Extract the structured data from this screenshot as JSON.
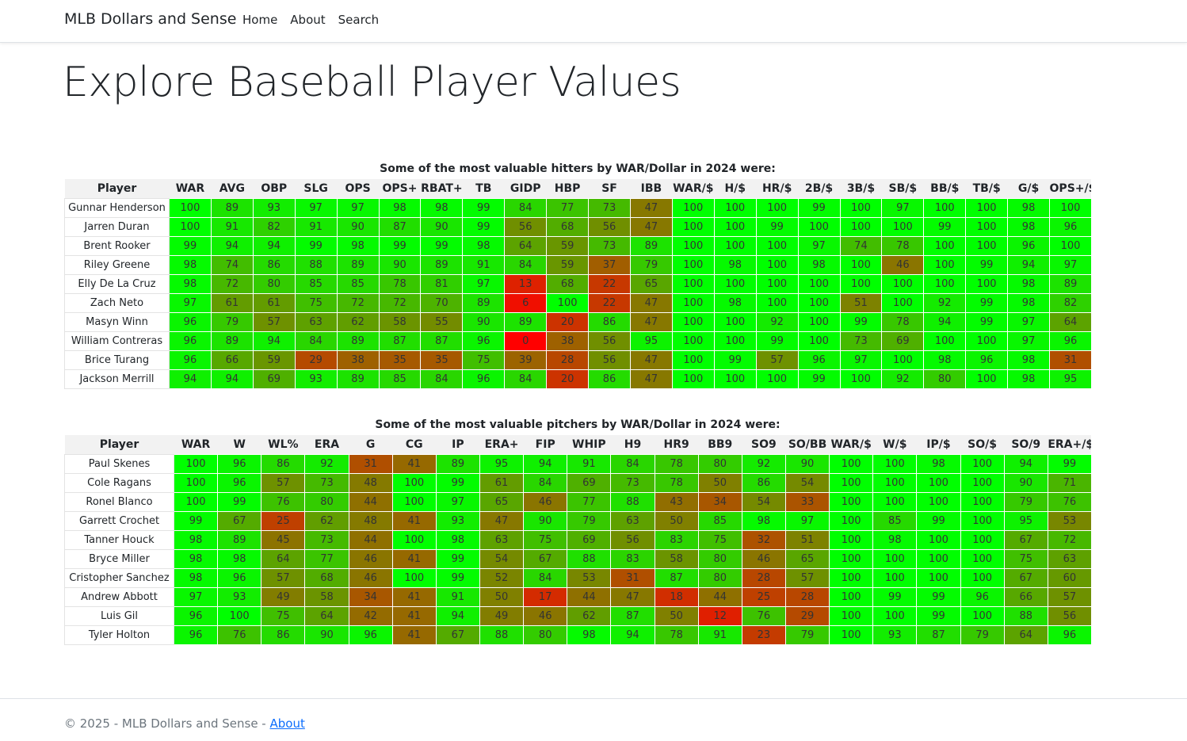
{
  "navbar": {
    "brand": "MLB Dollars and Sense",
    "links": [
      "Home",
      "About",
      "Search"
    ]
  },
  "page_title": "Explore Baseball Player Values",
  "hitters": {
    "caption": "Some of the most valuable hitters by WAR/Dollar in 2024 were:",
    "columns": [
      "Player",
      "WAR",
      "AVG",
      "OBP",
      "SLG",
      "OPS",
      "OPS+",
      "RBAT+",
      "TB",
      "GIDP",
      "HBP",
      "SF",
      "IBB",
      "WAR/$",
      "H/$",
      "HR/$",
      "2B/$",
      "3B/$",
      "SB/$",
      "BB/$",
      "TB/$",
      "G/$",
      "OPS+/$"
    ],
    "rows": [
      {
        "player": "Gunnar Henderson",
        "values": [
          100,
          89,
          93,
          97,
          97,
          98,
          98,
          99,
          84,
          77,
          73,
          47,
          100,
          100,
          100,
          99,
          100,
          97,
          100,
          100,
          98,
          100
        ]
      },
      {
        "player": "Jarren Duran",
        "values": [
          100,
          91,
          82,
          91,
          90,
          87,
          90,
          99,
          56,
          68,
          56,
          47,
          100,
          100,
          99,
          100,
          100,
          100,
          99,
          100,
          98,
          96
        ]
      },
      {
        "player": "Brent Rooker",
        "values": [
          99,
          94,
          94,
          99,
          98,
          99,
          99,
          98,
          64,
          59,
          73,
          89,
          100,
          100,
          100,
          97,
          74,
          78,
          100,
          100,
          96,
          100
        ]
      },
      {
        "player": "Riley Greene",
        "values": [
          98,
          74,
          86,
          88,
          89,
          90,
          89,
          91,
          84,
          59,
          37,
          79,
          100,
          98,
          100,
          98,
          100,
          46,
          100,
          99,
          94,
          97
        ]
      },
      {
        "player": "Elly De La Cruz",
        "values": [
          98,
          72,
          80,
          85,
          85,
          78,
          81,
          97,
          13,
          68,
          22,
          65,
          100,
          100,
          100,
          100,
          100,
          100,
          100,
          100,
          98,
          89
        ]
      },
      {
        "player": "Zach Neto",
        "values": [
          97,
          61,
          61,
          75,
          72,
          72,
          70,
          89,
          6,
          100,
          22,
          47,
          100,
          98,
          100,
          100,
          51,
          100,
          92,
          99,
          98,
          82
        ]
      },
      {
        "player": "Masyn Winn",
        "values": [
          96,
          79,
          57,
          63,
          62,
          58,
          55,
          90,
          89,
          20,
          86,
          47,
          100,
          100,
          92,
          100,
          99,
          78,
          94,
          99,
          97,
          64
        ]
      },
      {
        "player": "William Contreras",
        "values": [
          96,
          89,
          94,
          84,
          89,
          87,
          87,
          96,
          0,
          38,
          56,
          95,
          100,
          100,
          99,
          100,
          73,
          69,
          100,
          100,
          97,
          96
        ]
      },
      {
        "player": "Brice Turang",
        "values": [
          96,
          66,
          59,
          29,
          38,
          35,
          35,
          75,
          39,
          28,
          56,
          47,
          100,
          99,
          57,
          96,
          97,
          100,
          98,
          96,
          98,
          31
        ]
      },
      {
        "player": "Jackson Merrill",
        "values": [
          94,
          94,
          69,
          93,
          89,
          85,
          84,
          96,
          84,
          20,
          86,
          47,
          100,
          100,
          100,
          99,
          100,
          92,
          80,
          100,
          98,
          95
        ]
      }
    ]
  },
  "pitchers": {
    "caption": "Some of the most valuable pitchers by WAR/Dollar in 2024 were:",
    "columns": [
      "Player",
      "WAR",
      "W",
      "WL%",
      "ERA",
      "G",
      "CG",
      "IP",
      "ERA+",
      "FIP",
      "WHIP",
      "H9",
      "HR9",
      "BB9",
      "SO9",
      "SO/BB",
      "WAR/$",
      "W/$",
      "IP/$",
      "SO/$",
      "SO/9",
      "ERA+/$"
    ],
    "rows": [
      {
        "player": "Paul Skenes",
        "values": [
          100,
          96,
          86,
          92,
          31,
          41,
          89,
          95,
          94,
          91,
          84,
          78,
          80,
          92,
          90,
          100,
          100,
          98,
          100,
          94,
          99
        ]
      },
      {
        "player": "Cole Ragans",
        "values": [
          100,
          96,
          57,
          73,
          48,
          100,
          99,
          61,
          84,
          69,
          73,
          78,
          50,
          86,
          54,
          100,
          100,
          100,
          100,
          90,
          71
        ]
      },
      {
        "player": "Ronel Blanco",
        "values": [
          100,
          99,
          76,
          80,
          44,
          100,
          97,
          65,
          46,
          77,
          88,
          43,
          34,
          54,
          33,
          100,
          100,
          100,
          100,
          79,
          76
        ]
      },
      {
        "player": "Garrett Crochet",
        "values": [
          99,
          67,
          25,
          62,
          48,
          41,
          93,
          47,
          90,
          79,
          63,
          50,
          85,
          98,
          97,
          100,
          85,
          99,
          100,
          95,
          53
        ]
      },
      {
        "player": "Tanner Houck",
        "values": [
          98,
          89,
          45,
          73,
          44,
          100,
          98,
          63,
          75,
          69,
          56,
          83,
          75,
          32,
          51,
          100,
          98,
          100,
          100,
          67,
          72
        ]
      },
      {
        "player": "Bryce Miller",
        "values": [
          98,
          98,
          64,
          77,
          46,
          41,
          99,
          54,
          67,
          88,
          83,
          58,
          80,
          46,
          65,
          100,
          100,
          100,
          100,
          75,
          63
        ]
      },
      {
        "player": "Cristopher Sanchez",
        "values": [
          98,
          96,
          57,
          68,
          46,
          100,
          99,
          52,
          84,
          53,
          31,
          87,
          80,
          28,
          57,
          100,
          100,
          100,
          100,
          67,
          60
        ]
      },
      {
        "player": "Andrew Abbott",
        "values": [
          97,
          93,
          49,
          58,
          34,
          41,
          91,
          50,
          17,
          44,
          47,
          18,
          44,
          25,
          28,
          100,
          99,
          99,
          96,
          66,
          57
        ]
      },
      {
        "player": "Luis Gil",
        "values": [
          96,
          100,
          75,
          64,
          42,
          41,
          94,
          49,
          46,
          62,
          87,
          50,
          12,
          76,
          29,
          100,
          100,
          99,
          100,
          88,
          56
        ]
      },
      {
        "player": "Tyler Holton",
        "values": [
          96,
          76,
          86,
          90,
          96,
          41,
          67,
          88,
          80,
          98,
          94,
          78,
          91,
          23,
          79,
          100,
          93,
          87,
          79,
          64,
          96
        ]
      }
    ]
  },
  "footer": {
    "text": "© 2025 - MLB Dollars and Sense - ",
    "link": "About"
  }
}
